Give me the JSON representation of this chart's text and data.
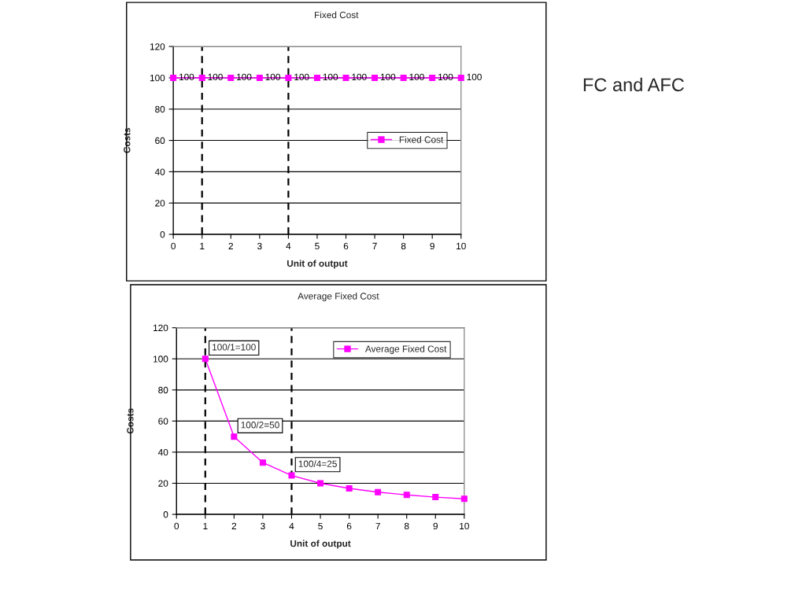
{
  "chart_data": [
    {
      "type": "line",
      "title": "Fixed Cost",
      "xlabel": "Unit of output",
      "ylabel": "Costs",
      "x": [
        0,
        1,
        2,
        3,
        4,
        5,
        6,
        7,
        8,
        9,
        10
      ],
      "series": [
        {
          "name": "Fixed Cost",
          "color": "#ff00ff",
          "values": [
            100,
            100,
            100,
            100,
            100,
            100,
            100,
            100,
            100,
            100,
            100
          ]
        }
      ],
      "xlim": [
        0,
        10
      ],
      "xticks": [
        0,
        1,
        2,
        3,
        4,
        5,
        6,
        7,
        8,
        9,
        10
      ],
      "ylim": [
        0,
        120
      ],
      "yticks": [
        0,
        20,
        40,
        60,
        80,
        100,
        120
      ],
      "grid": "y",
      "legend": "right",
      "marker": "square",
      "line_style": "solid",
      "data_labels": true,
      "ref_lines": [
        {
          "axis": "x",
          "value": 1,
          "color": "#000000",
          "line_style": "dashed"
        },
        {
          "axis": "x",
          "value": 4,
          "color": "#000000",
          "line_style": "dashed"
        }
      ],
      "annotations": [
        "FC and AFC"
      ]
    },
    {
      "type": "line",
      "title": "Average Fixed Cost",
      "xlabel": "Unit of output",
      "ylabel": "Costs",
      "x": [
        1,
        2,
        3,
        4,
        5,
        6,
        7,
        8,
        9,
        10
      ],
      "series": [
        {
          "name": "Average Fixed Cost",
          "color": "#ff00ff",
          "values": [
            100,
            50,
            33.3,
            25,
            20,
            16.7,
            14.3,
            12.5,
            11.1,
            10
          ]
        }
      ],
      "xlim": [
        0,
        10
      ],
      "xticks": [
        0,
        1,
        2,
        3,
        4,
        5,
        6,
        7,
        8,
        9,
        10
      ],
      "ylim": [
        0,
        120
      ],
      "yticks": [
        0,
        20,
        40,
        60,
        80,
        100,
        120
      ],
      "grid": "y",
      "legend": "top right",
      "marker": "square",
      "line_style": "solid",
      "ref_lines": [
        {
          "axis": "x",
          "value": 1,
          "color": "#000000",
          "line_style": "dashed"
        },
        {
          "axis": "x",
          "value": 4,
          "color": "#000000",
          "line_style": "dashed"
        }
      ],
      "annotations": [
        {
          "text": "100/1=100",
          "x": 1,
          "y": 100
        },
        {
          "text": "100/2=50",
          "x": 2,
          "y": 50
        },
        {
          "text": "100/4=25",
          "x": 4,
          "y": 25
        }
      ]
    }
  ]
}
